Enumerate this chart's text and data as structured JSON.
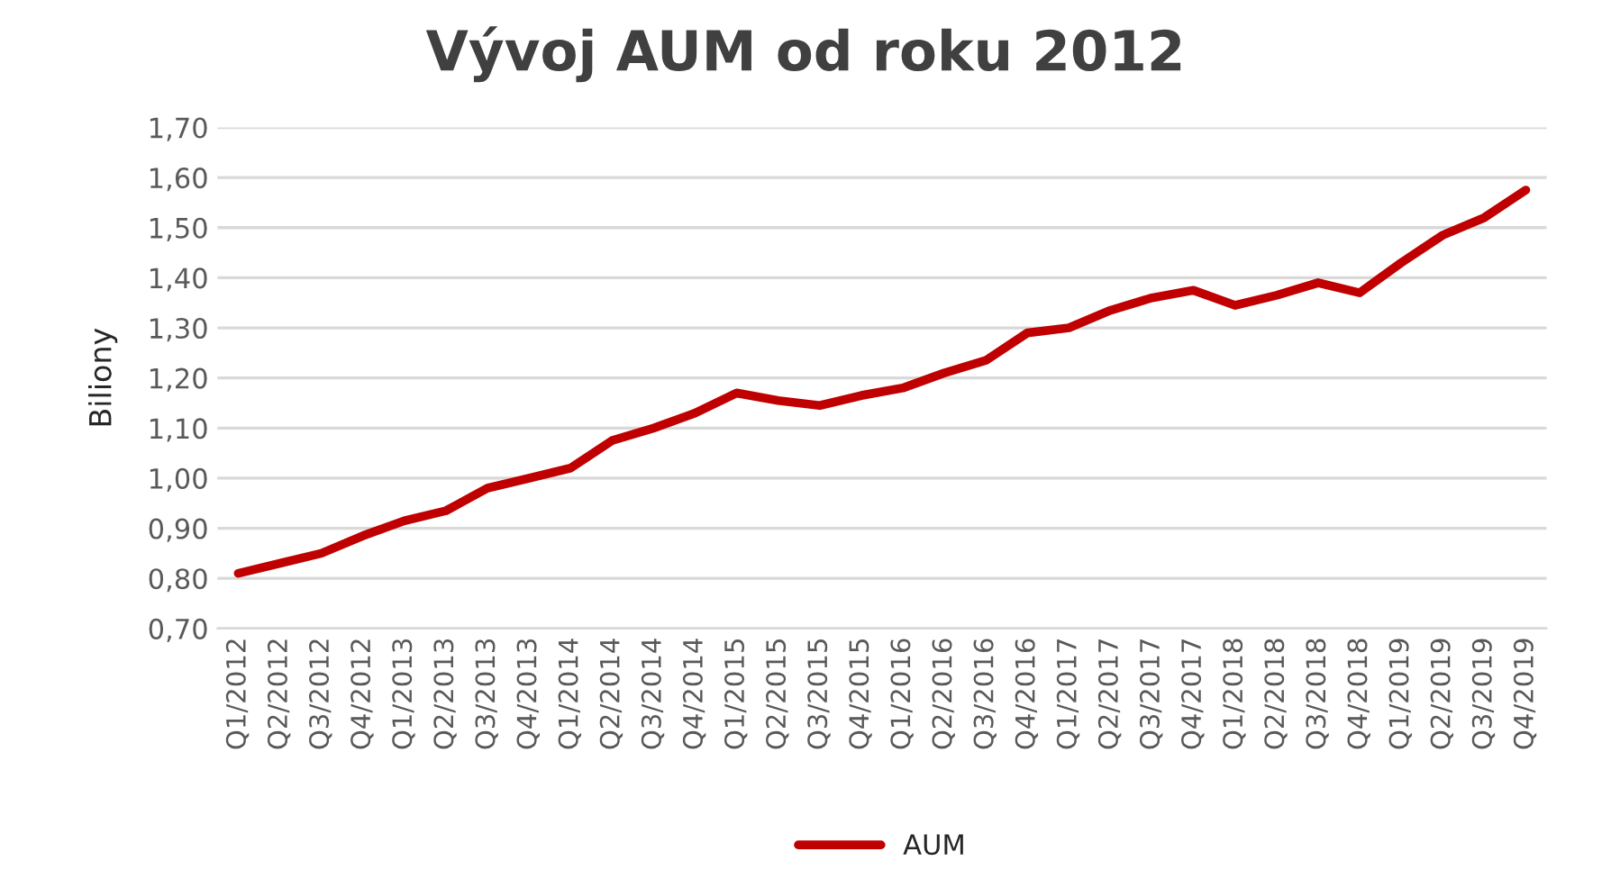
{
  "chart_data": {
    "type": "line",
    "title": "Vývoj AUM od roku 2012",
    "ylabel": "Biliony",
    "categories": [
      "Q1/2012",
      "Q2/2012",
      "Q3/2012",
      "Q4/2012",
      "Q1/2013",
      "Q2/2013",
      "Q3/2013",
      "Q4/2013",
      "Q1/2014",
      "Q2/2014",
      "Q3/2014",
      "Q4/2014",
      "Q1/2015",
      "Q2/2015",
      "Q3/2015",
      "Q4/2015",
      "Q1/2016",
      "Q2/2016",
      "Q3/2016",
      "Q4/2016",
      "Q1/2017",
      "Q2/2017",
      "Q3/2017",
      "Q4/2017",
      "Q1/2018",
      "Q2/2018",
      "Q3/2018",
      "Q4/2018",
      "Q1/2019",
      "Q2/2019",
      "Q3/2019",
      "Q4/2019"
    ],
    "series": [
      {
        "name": "AUM",
        "color": "#c00000",
        "values": [
          0.81,
          0.83,
          0.85,
          0.885,
          0.915,
          0.935,
          0.98,
          1.0,
          1.02,
          1.075,
          1.1,
          1.13,
          1.17,
          1.155,
          1.145,
          1.165,
          1.18,
          1.21,
          1.235,
          1.29,
          1.3,
          1.335,
          1.36,
          1.375,
          1.345,
          1.365,
          1.39,
          1.37,
          1.43,
          1.485,
          1.52,
          1.575
        ]
      }
    ],
    "ylim": [
      0.7,
      1.7
    ],
    "yticks": [
      {
        "value": 0.7,
        "label": "0,70"
      },
      {
        "value": 0.8,
        "label": "0,80"
      },
      {
        "value": 0.9,
        "label": "0,90"
      },
      {
        "value": 1.0,
        "label": "1,00"
      },
      {
        "value": 1.1,
        "label": "1,10"
      },
      {
        "value": 1.2,
        "label": "1,20"
      },
      {
        "value": 1.3,
        "label": "1,30"
      },
      {
        "value": 1.4,
        "label": "1,40"
      },
      {
        "value": 1.5,
        "label": "1,50"
      },
      {
        "value": 1.6,
        "label": "1,60"
      },
      {
        "value": 1.7,
        "label": "1,70"
      }
    ],
    "grid": "y",
    "legend": "bottom",
    "marker": "none",
    "line_style": "solid"
  }
}
